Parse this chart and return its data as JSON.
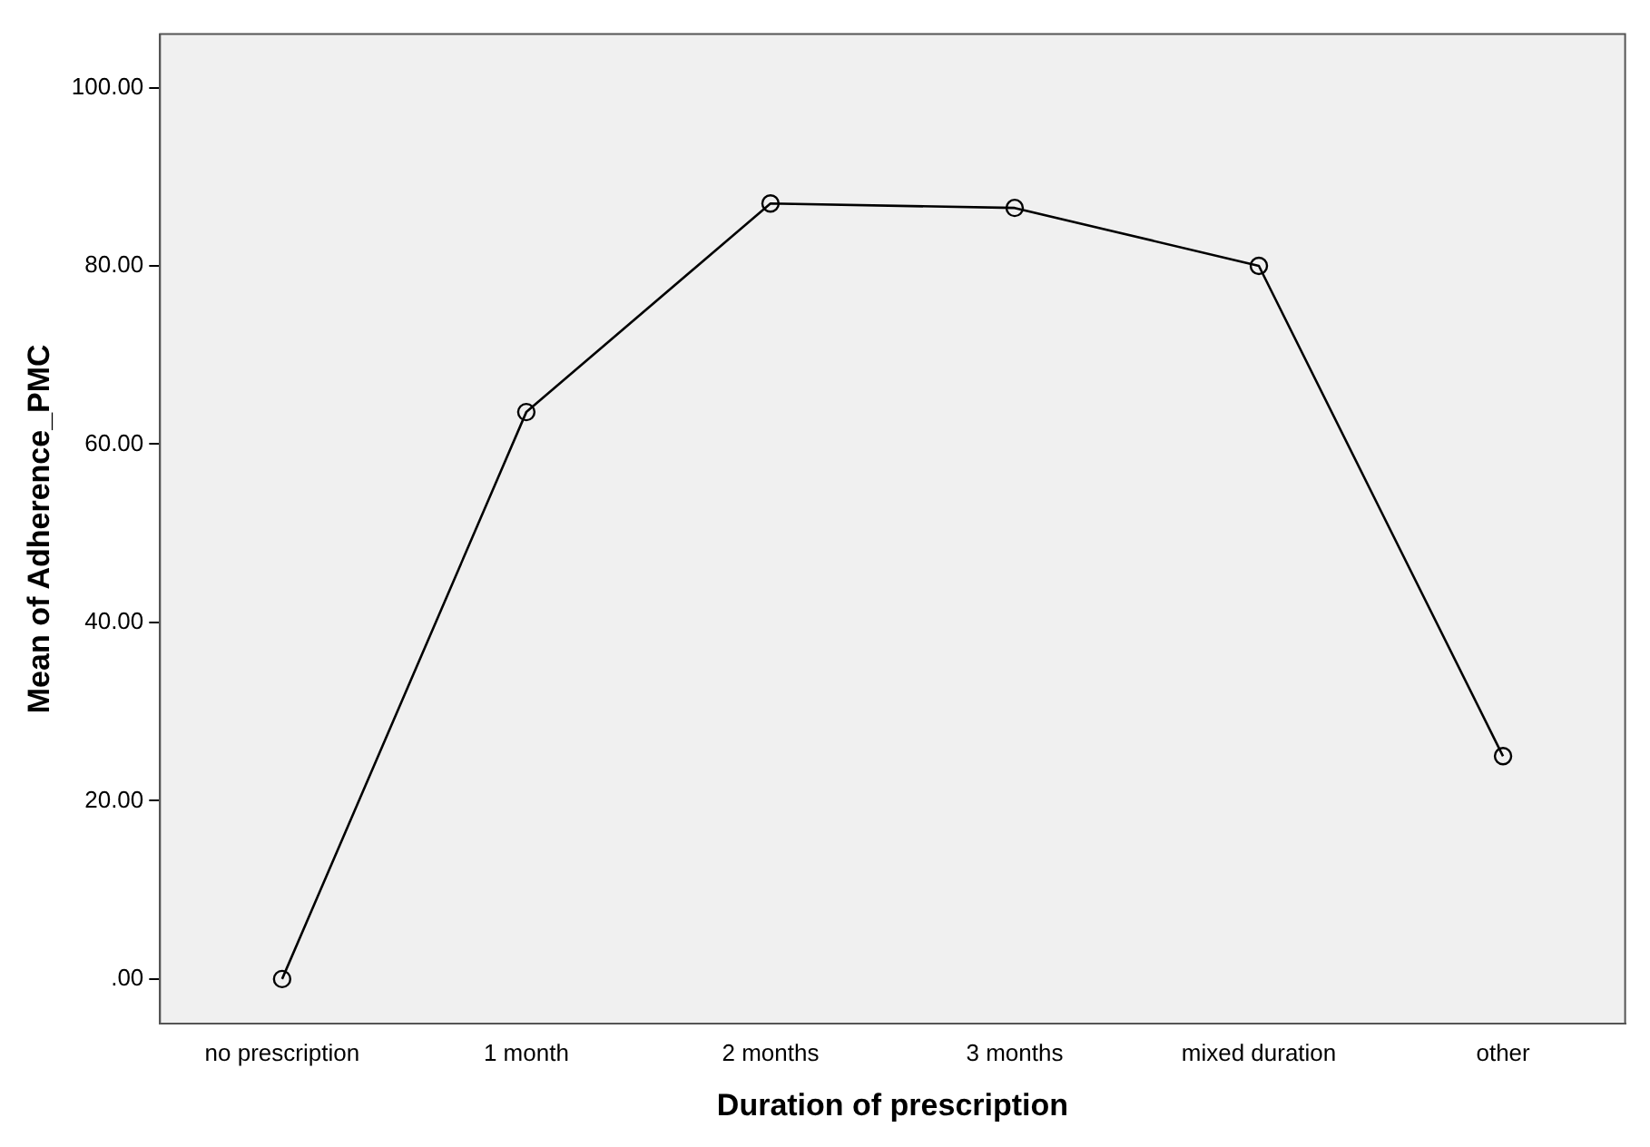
{
  "chart_data": {
    "type": "line",
    "xlabel": "Duration of prescription",
    "ylabel": "Mean of Adherence_PMC",
    "categories": [
      "no prescription",
      "1 month",
      "2 months",
      "3 months",
      "mixed duration",
      "other"
    ],
    "series": [
      {
        "color": "#000000",
        "values": [
          0,
          63.6,
          87,
          86.5,
          80,
          25
        ]
      }
    ],
    "ylim": [
      -5,
      106
    ],
    "yticks": [
      {
        "value": 0,
        "label": ".00"
      },
      {
        "value": 20,
        "label": "20.00"
      },
      {
        "value": 40,
        "label": "40.00"
      },
      {
        "value": 60,
        "label": "60.00"
      },
      {
        "value": 80,
        "label": "80.00"
      },
      {
        "value": 100,
        "label": "100.00"
      }
    ],
    "grid": false,
    "legend": false,
    "marker": "circle",
    "line_style": "solid"
  }
}
